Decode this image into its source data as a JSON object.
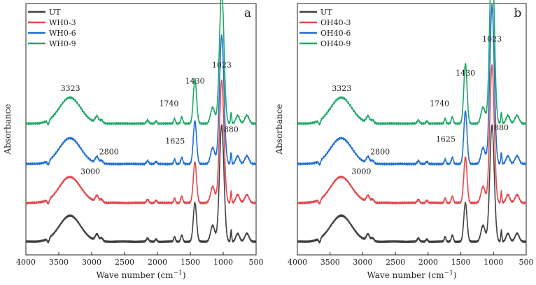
{
  "chart_data": [
    {
      "type": "line",
      "panel_label": "a",
      "xlabel": "Wave number (cm",
      "xlabel_sup": "−1",
      "xlabel_close": ")",
      "ylabel": "Absorbance",
      "xlim": [
        4000,
        500
      ],
      "x_ticks": [
        4000,
        3500,
        3000,
        2500,
        2000,
        1500,
        1000,
        500
      ],
      "y_tick_labels": false,
      "legend": "top-left",
      "series": [
        {
          "name": "UT",
          "color": "#404040",
          "offset": 0.0
        },
        {
          "name": "WH0-3",
          "color": "#e5484d",
          "offset": 0.24
        },
        {
          "name": "WH0-6",
          "color": "#1f6fd1",
          "offset": 0.48
        },
        {
          "name": "WH0-9",
          "color": "#1fa868",
          "offset": 0.73
        }
      ],
      "annotations": [
        {
          "text": "3323",
          "x": 3323,
          "level": 0.94
        },
        {
          "text": "1023",
          "x": 1023,
          "level": 1.08
        },
        {
          "text": "1430",
          "x": 1430,
          "level": 0.98
        },
        {
          "text": "1740",
          "x": 1740,
          "level": 0.85
        },
        {
          "text": "1625",
          "x": 1625,
          "level": 0.62
        },
        {
          "text": "880",
          "x": 880,
          "level": 0.7
        },
        {
          "text": "3000",
          "x": 3000,
          "level": 0.5
        },
        {
          "text": "2800",
          "x": 2800,
          "level": 0.57
        }
      ]
    },
    {
      "type": "line",
      "panel_label": "b",
      "xlabel": "Wave number (cm",
      "xlabel_sup": "−1",
      "xlabel_close": ")",
      "ylabel": "Absorbance",
      "xlim": [
        4000,
        500
      ],
      "x_ticks": [
        4000,
        3500,
        3000,
        2500,
        2000,
        1500,
        1000,
        500
      ],
      "y_tick_labels": false,
      "legend": "top-left",
      "series": [
        {
          "name": "UT",
          "color": "#404040",
          "offset": 0.0
        },
        {
          "name": "OH40-3",
          "color": "#e5484d",
          "offset": 0.24
        },
        {
          "name": "OH40-6",
          "color": "#1f6fd1",
          "offset": 0.48
        },
        {
          "name": "OH40-9",
          "color": "#1fa868",
          "offset": 0.73
        }
      ],
      "annotations": [
        {
          "text": "3323",
          "x": 3323,
          "level": 0.94
        },
        {
          "text": "1023",
          "x": 1023,
          "level": 1.24
        },
        {
          "text": "1430",
          "x": 1430,
          "level": 1.03
        },
        {
          "text": "1740",
          "x": 1740,
          "level": 0.85
        },
        {
          "text": "1625",
          "x": 1625,
          "level": 0.63
        },
        {
          "text": "880",
          "x": 880,
          "level": 0.71
        },
        {
          "text": "3000",
          "x": 3000,
          "level": 0.5
        },
        {
          "text": "2800",
          "x": 2800,
          "level": 0.57
        }
      ]
    }
  ]
}
